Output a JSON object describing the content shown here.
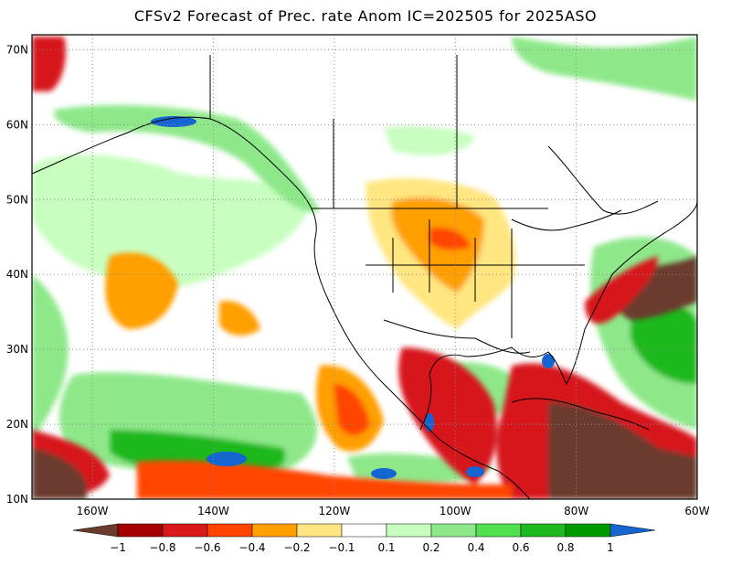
{
  "title": "CFSv2 Forecast of Prec. rate Anom IC=202505 for 2025ASO",
  "map": {
    "lat_labels": [
      {
        "value": 70,
        "label": "70N"
      },
      {
        "value": 60,
        "label": "60N"
      },
      {
        "value": 50,
        "label": "50N"
      },
      {
        "value": 40,
        "label": "40N"
      },
      {
        "value": 30,
        "label": "30N"
      },
      {
        "value": 20,
        "label": "20N"
      },
      {
        "value": 10,
        "label": "10N"
      }
    ],
    "lon_labels": [
      {
        "value": -160,
        "label": "160W"
      },
      {
        "value": -140,
        "label": "140W"
      },
      {
        "value": -120,
        "label": "120W"
      },
      {
        "value": -100,
        "label": "100W"
      },
      {
        "value": -80,
        "label": "80W"
      },
      {
        "value": -60,
        "label": "60W"
      }
    ],
    "extent": {
      "lon_min": -170,
      "lon_max": -60,
      "lat_min": 10,
      "lat_max": 72
    },
    "gridlines": true
  },
  "legend": {
    "labels": [
      "−1",
      "−0.8",
      "−0.6",
      "−0.4",
      "−0.2",
      "−0.1",
      "0.1",
      "0.2",
      "0.4",
      "0.6",
      "0.8",
      "1"
    ],
    "colors": [
      "#6b3a2e",
      "#a50000",
      "#d7191c",
      "#ff4500",
      "#ff9f00",
      "#ffe680",
      "#ffffff",
      "#c8ffc0",
      "#8ee88a",
      "#50e050",
      "#1fb81f",
      "#009a00",
      "#1464d2"
    ]
  },
  "colors": {
    "dry_strong": "#6b3a2e",
    "dry_mid": "#d7191c",
    "dry_light": "#ff9f00",
    "wet_light": "#8ee88a",
    "wet_mid": "#1fb81f",
    "wet_strong": "#1464d2"
  }
}
